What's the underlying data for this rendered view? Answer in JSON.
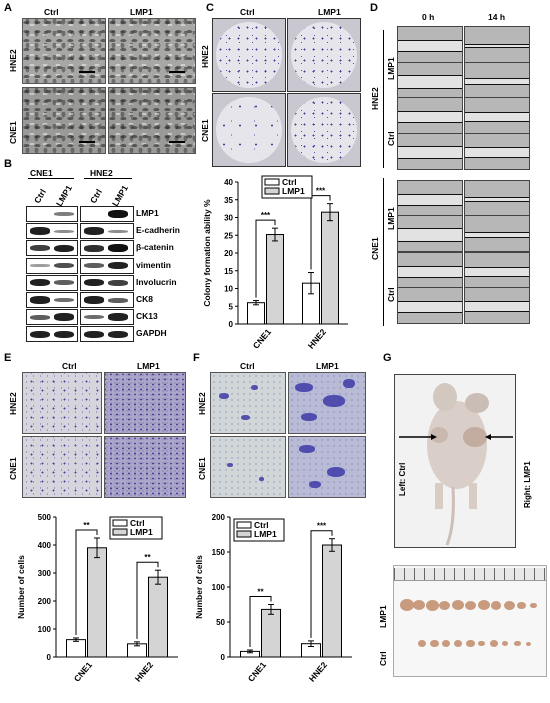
{
  "panels": {
    "A": "A",
    "B": "B",
    "C": "C",
    "D": "D",
    "E": "E",
    "F": "F",
    "G": "G"
  },
  "common": {
    "ctrl": "Ctrl",
    "lmp1": "LMP1",
    "cne1": "CNE1",
    "hne2": "HNE2"
  },
  "panelD": {
    "t0": "0 h",
    "t14": "14 h"
  },
  "panelB": {
    "proteins": [
      "LMP1",
      "E-cadherin",
      "β-catenin",
      "vimentin",
      "Involucrin",
      "CK8",
      "CK13",
      "GAPDH"
    ]
  },
  "panelG": {
    "left": "Left: Ctrl",
    "right": "Right: LMP1"
  },
  "chart_data": [
    {
      "type": "bar",
      "panel": "C",
      "ylabel": "Colony formation ability %",
      "categories": [
        "CNE1",
        "HNE2"
      ],
      "series": [
        {
          "name": "Ctrl",
          "values": [
            6,
            11.5
          ],
          "errors": [
            0.6,
            3
          ]
        },
        {
          "name": "LMP1",
          "values": [
            25.2,
            31.5
          ],
          "errors": [
            1.8,
            2.4
          ]
        }
      ],
      "ylim": [
        0,
        40
      ],
      "yticks": [
        0,
        5,
        10,
        15,
        20,
        25,
        30,
        35,
        40
      ],
      "significance": [
        "***",
        "***"
      ],
      "legend": "top"
    },
    {
      "type": "bar",
      "panel": "E",
      "ylabel": "Number of cells",
      "categories": [
        "CNE1",
        "HNE2"
      ],
      "series": [
        {
          "name": "Ctrl",
          "values": [
            62,
            47
          ],
          "errors": [
            6,
            7
          ]
        },
        {
          "name": "LMP1",
          "values": [
            390,
            285
          ],
          "errors": [
            35,
            25
          ]
        }
      ],
      "ylim": [
        0,
        500
      ],
      "yticks": [
        0,
        100,
        200,
        300,
        400,
        500
      ],
      "significance": [
        "**",
        "**"
      ],
      "legend": "top"
    },
    {
      "type": "bar",
      "panel": "F",
      "ylabel": "Number of cells",
      "categories": [
        "CNE1",
        "HNE2"
      ],
      "series": [
        {
          "name": "Ctrl",
          "values": [
            8,
            19
          ],
          "errors": [
            2,
            4
          ]
        },
        {
          "name": "LMP1",
          "values": [
            68,
            160
          ],
          "errors": [
            7,
            9
          ]
        }
      ],
      "ylim": [
        0,
        200
      ],
      "yticks": [
        0,
        50,
        100,
        150,
        200
      ],
      "significance": [
        "**",
        "***"
      ],
      "legend": "top-left"
    }
  ]
}
